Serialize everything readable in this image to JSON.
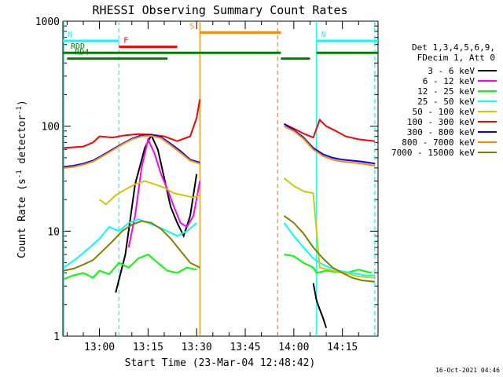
{
  "chart_data": {
    "type": "line",
    "title": "RHESSI Observing Summary Count Rates",
    "xlabel": "Start Time (23-Mar-04 12:48:42)",
    "ylabel": "Count Rate (s⁻¹ detector⁻¹)",
    "ylabel_main": "Count Rate (s",
    "ylabel_sup1": "-1",
    "ylabel_mid": " detector",
    "ylabel_sup2": "-1",
    "ylabel_end": ")",
    "yscale": "log",
    "ylim": [
      1,
      1000
    ],
    "xlim": [
      "12:48:42",
      "14:26:00"
    ],
    "x_ticks": [
      "13:00",
      "13:15",
      "13:30",
      "13:45",
      "14:00",
      "14:15"
    ],
    "y_ticks": [
      "1",
      "10",
      "100",
      "1000"
    ],
    "footer_date": "16-Oct-2021 04:46",
    "legend": {
      "header": [
        "Det 1,3,4,5,6,9,",
        "FDecim 1, Att 0"
      ],
      "entries": [
        {
          "label": "3 - 6 keV",
          "color": "#000000"
        },
        {
          "label": "6 - 12 keV",
          "color": "#ff00ff"
        },
        {
          "label": "12 - 25 keV",
          "color": "#00ff00"
        },
        {
          "label": "25 - 50 keV",
          "color": "#00ffff"
        },
        {
          "label": "50 - 100 keV",
          "color": "#cccc00"
        },
        {
          "label": "100 - 300 keV",
          "color": "#ff0000"
        },
        {
          "label": "300 - 800 keV",
          "color": "#0000ff"
        },
        {
          "label": "800 - 7000 keV",
          "color": "#ff8800"
        },
        {
          "label": "7000 - 15000 keV",
          "color": "#808000"
        }
      ]
    },
    "flag_bars": [
      {
        "label": "N",
        "color": "#00ffff",
        "start": "12:48:42",
        "end": "13:06",
        "level_rate": 650
      },
      {
        "label": "N",
        "color": "#00ffff",
        "start": "14:07",
        "end": "14:26",
        "level_rate": 650
      },
      {
        "label": "F",
        "color": "#ff0000",
        "start": "13:06",
        "end": "13:24",
        "level_rate": 570
      },
      {
        "label": "S",
        "color": "#ff8800",
        "start": "13:31",
        "end": "13:56",
        "level_rate": 780
      },
      {
        "label": "RDD",
        "color": "#008000",
        "start": "12:48:42",
        "end": "13:21",
        "level_rate": 500
      },
      {
        "label": "",
        "color": "#008000",
        "start": "13:21",
        "end": "13:56",
        "level_rate": 500
      },
      {
        "label": "",
        "color": "#008000",
        "start": "13:56",
        "end": "14:05",
        "level_rate": 440
      },
      {
        "label": "",
        "color": "#008000",
        "start": "14:07",
        "end": "14:26",
        "level_rate": 500
      },
      {
        "label": "RD4",
        "color": "#008000",
        "start": "12:50",
        "end": "13:21",
        "level_rate": 440
      }
    ],
    "vertical_lines": [
      {
        "time": "12:49:00",
        "color": "#00ffff",
        "style": "solid"
      },
      {
        "time": "13:06",
        "color": "#00ffff",
        "style": "dashed"
      },
      {
        "time": "13:31",
        "color": "#ff8800",
        "style": "solid"
      },
      {
        "time": "13:55",
        "color": "#ff8800",
        "style": "dashed"
      },
      {
        "time": "14:07",
        "color": "#00ffff",
        "style": "solid"
      },
      {
        "time": "14:25",
        "color": "#00ffff",
        "style": "dashed"
      }
    ],
    "series": [
      {
        "name": "3 - 6 keV",
        "color": "#000000",
        "x": [
          "13:05",
          "13:08",
          "13:11",
          "13:14",
          "13:16",
          "13:18",
          "13:20",
          "13:22",
          "13:24",
          "13:26",
          "13:28",
          "13:30",
          "14:06",
          "14:07",
          "14:08",
          "14:09",
          "14:10"
        ],
        "y": [
          2.6,
          6,
          28,
          62,
          82,
          60,
          32,
          17,
          12,
          9,
          14,
          35,
          3.2,
          2.2,
          1.8,
          1.5,
          1.2
        ]
      },
      {
        "name": "6 - 12 keV",
        "color": "#ff00ff",
        "x": [
          "13:09",
          "13:11",
          "13:13",
          "13:15",
          "13:17",
          "13:19",
          "13:21",
          "13:23",
          "13:25",
          "13:27",
          "13:29",
          "13:31"
        ],
        "y": [
          7,
          14,
          40,
          75,
          55,
          35,
          25,
          17,
          12,
          11,
          14,
          30
        ]
      },
      {
        "name": "12 - 25 keV",
        "color": "#00ff00",
        "x": [
          "12:49",
          "12:52",
          "12:55",
          "12:58",
          "13:00",
          "13:03",
          "13:06",
          "13:09",
          "13:12",
          "13:15",
          "13:18",
          "13:21",
          "13:24",
          "13:27",
          "13:30",
          "13:57",
          "14:00",
          "14:03",
          "14:06",
          "14:07",
          "14:10",
          "14:13",
          "14:16",
          "14:20",
          "14:24"
        ],
        "y": [
          3.5,
          3.8,
          4,
          3.6,
          4.2,
          3.9,
          5,
          4.5,
          5.5,
          6,
          5,
          4.2,
          4,
          4.5,
          4.3,
          6,
          5.8,
          5,
          4.5,
          4,
          4.2,
          4.1,
          4,
          4.3,
          4
        ]
      },
      {
        "name": "25 - 50 keV",
        "color": "#00ffff",
        "x": [
          "12:49",
          "12:53",
          "12:57",
          "13:00",
          "13:03",
          "13:06",
          "13:09",
          "13:12",
          "13:15",
          "13:18",
          "13:21",
          "13:24",
          "13:27",
          "13:30",
          "13:57",
          "14:00",
          "14:03",
          "14:06",
          "14:08",
          "14:11",
          "14:14",
          "14:18",
          "14:22",
          "14:25"
        ],
        "y": [
          4.5,
          5.5,
          7,
          8.5,
          11,
          10,
          12,
          13,
          12,
          11,
          10,
          9,
          10,
          12,
          12,
          9,
          7,
          5.5,
          5,
          4.5,
          4.2,
          4,
          3.8,
          3.8
        ]
      },
      {
        "name": "50 - 100 keV",
        "color": "#cccc00",
        "x": [
          "13:00",
          "13:02",
          "13:05",
          "13:08",
          "13:11",
          "13:14",
          "13:17",
          "13:20",
          "13:23",
          "13:26",
          "13:29",
          "13:31",
          "13:57",
          "14:00",
          "14:03",
          "14:06",
          "14:08",
          "14:12",
          "14:16",
          "14:20",
          "14:25"
        ],
        "y": [
          20,
          18,
          22,
          25,
          28,
          30,
          28,
          26,
          23,
          22,
          21,
          22,
          32,
          27,
          24,
          23,
          4.5,
          4.2,
          4,
          3.7,
          3.6
        ]
      },
      {
        "name": "100 - 300 keV",
        "color": "#ff0000",
        "x": [
          "12:49",
          "12:52",
          "12:55",
          "12:58",
          "13:00",
          "13:04",
          "13:08",
          "13:12",
          "13:16",
          "13:20",
          "13:24",
          "13:28",
          "13:30",
          "13:31",
          "13:57",
          "14:00",
          "14:03",
          "14:06",
          "14:08",
          "14:10",
          "14:13",
          "14:16",
          "14:20",
          "14:25"
        ],
        "y": [
          62,
          63,
          64,
          70,
          80,
          78,
          82,
          84,
          83,
          80,
          72,
          80,
          120,
          180,
          105,
          95,
          85,
          78,
          115,
          100,
          90,
          80,
          75,
          72
        ]
      },
      {
        "name": "300 - 800 keV",
        "color": "#0000ff",
        "x": [
          "12:49",
          "12:52",
          "12:55",
          "12:58",
          "13:01",
          "13:04",
          "13:07",
          "13:10",
          "13:13",
          "13:16",
          "13:19",
          "13:22",
          "13:25",
          "13:28",
          "13:31",
          "13:57",
          "14:00",
          "14:03",
          "14:06",
          "14:09",
          "14:12",
          "14:15",
          "14:18",
          "14:21",
          "14:25"
        ],
        "y": [
          41,
          42,
          44,
          47,
          53,
          60,
          68,
          76,
          82,
          83,
          79,
          68,
          58,
          48,
          45,
          105,
          92,
          78,
          62,
          54,
          50,
          48,
          47,
          46,
          44
        ]
      },
      {
        "name": "800 - 7000 keV",
        "color": "#ff8800",
        "x": [
          "12:49",
          "12:52",
          "12:55",
          "12:58",
          "13:01",
          "13:04",
          "13:07",
          "13:10",
          "13:13",
          "13:16",
          "13:19",
          "13:22",
          "13:25",
          "13:28",
          "13:31",
          "13:57",
          "14:00",
          "14:03",
          "14:06",
          "14:09",
          "14:12",
          "14:15",
          "14:18",
          "14:21",
          "14:25"
        ],
        "y": [
          40,
          41,
          43,
          46,
          52,
          59,
          67,
          75,
          80,
          81,
          77,
          66,
          56,
          47,
          44,
          100,
          90,
          76,
          60,
          52,
          48,
          46,
          45,
          44,
          42
        ]
      },
      {
        "name": "7000 - 15000 keV",
        "color": "#808000",
        "x": [
          "12:49",
          "12:52",
          "12:55",
          "12:58",
          "13:01",
          "13:04",
          "13:07",
          "13:10",
          "13:13",
          "13:16",
          "13:19",
          "13:22",
          "13:25",
          "13:28",
          "13:31",
          "13:57",
          "14:00",
          "14:03",
          "14:06",
          "14:09",
          "14:12",
          "14:15",
          "14:18",
          "14:21",
          "14:25"
        ],
        "y": [
          4.2,
          4.4,
          4.8,
          5.3,
          6.5,
          8,
          10,
          11.5,
          12.5,
          12,
          10.5,
          8.5,
          6.5,
          5,
          4.5,
          14,
          12,
          9.5,
          7,
          5.5,
          4.5,
          4,
          3.6,
          3.4,
          3.3
        ]
      }
    ]
  }
}
